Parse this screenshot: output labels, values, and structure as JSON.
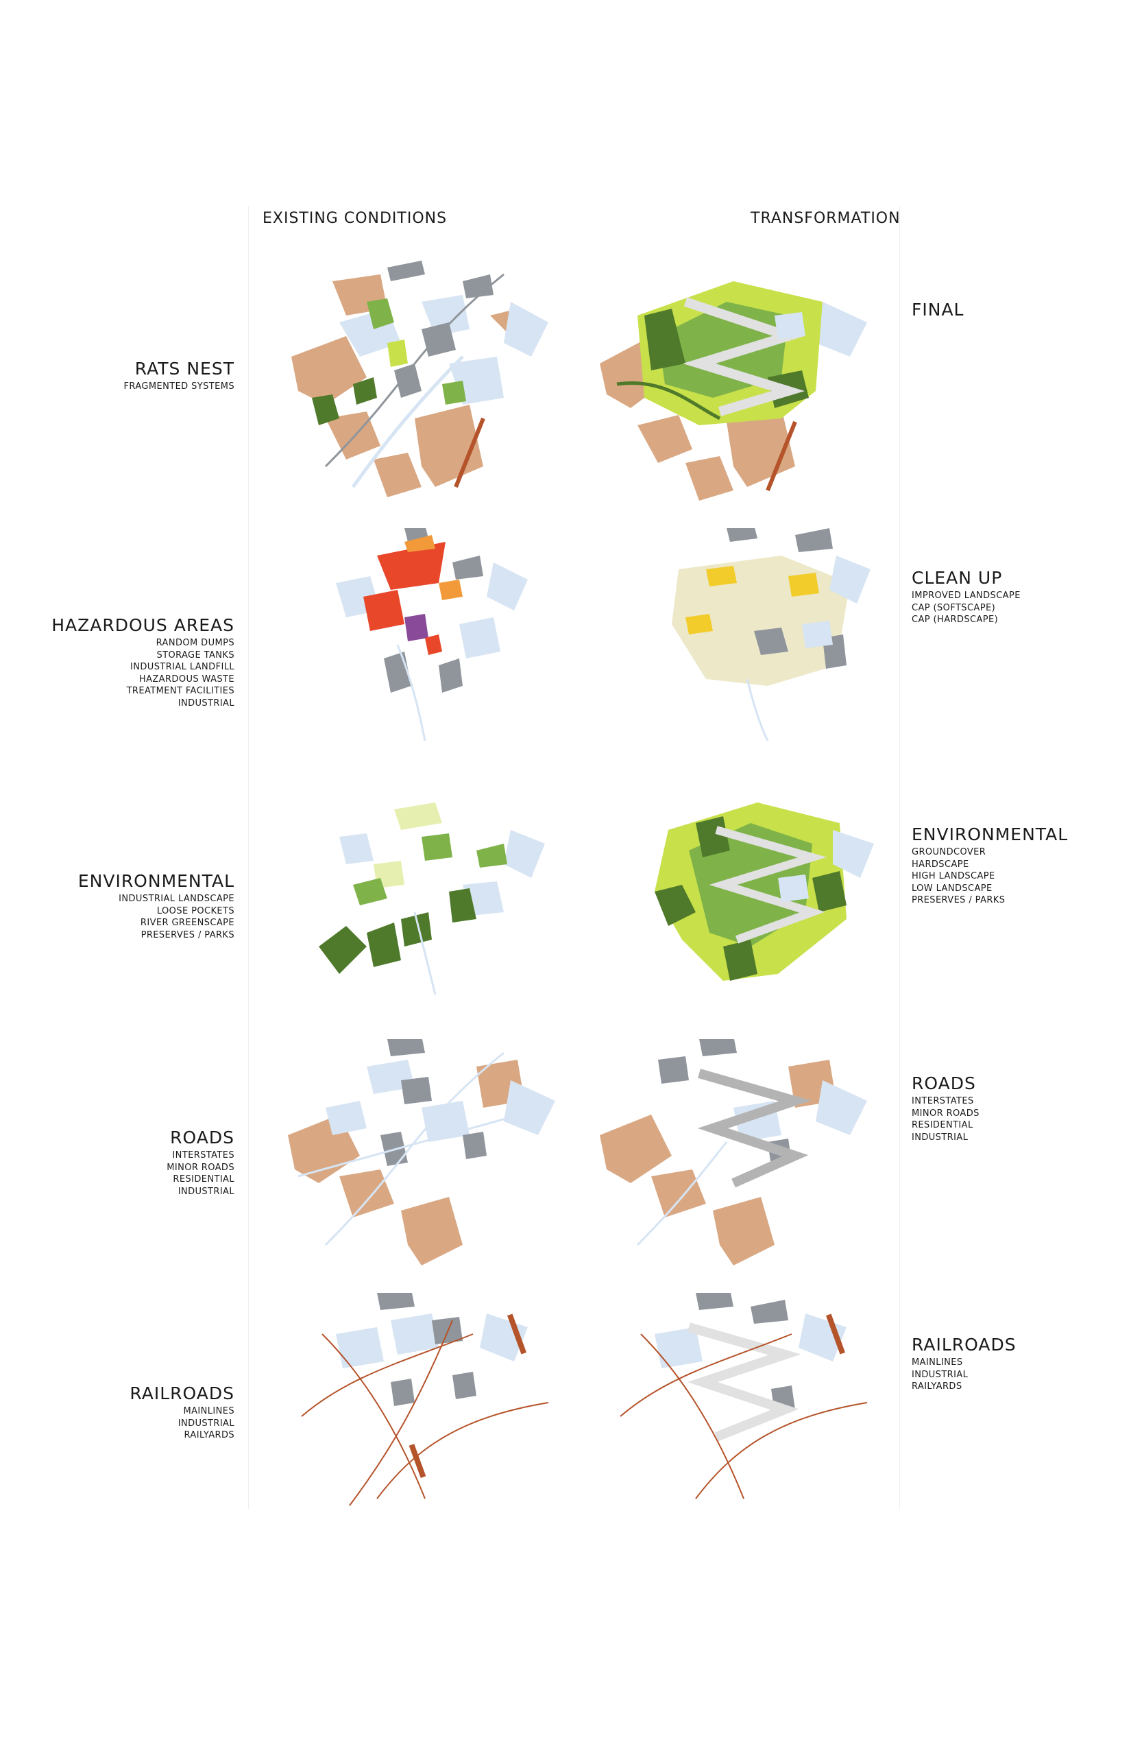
{
  "headers": {
    "existing": "EXISTING CONDITIONS",
    "transformation": "TRANSFORMATION"
  },
  "left_rows": [
    {
      "title": "RATS NEST",
      "items": [
        "FRAGMENTED SYSTEMS"
      ]
    },
    {
      "title": "HAZARDOUS AREAS",
      "items": [
        "RANDOM DUMPS",
        "STORAGE TANKS",
        "INDUSTRIAL LANDFILL",
        "HAZARDOUS WASTE",
        "TREATMENT FACILITIES",
        "INDUSTRIAL"
      ]
    },
    {
      "title": "ENVIRONMENTAL",
      "items": [
        "INDUSTRIAL LANDSCAPE",
        "LOOSE POCKETS",
        "RIVER GREENSCAPE",
        "PRESERVES / PARKS"
      ]
    },
    {
      "title": "ROADS",
      "items": [
        "INTERSTATES",
        "MINOR ROADS",
        "RESIDENTIAL",
        "INDUSTRIAL"
      ]
    },
    {
      "title": "RAILROADS",
      "items": [
        "MAINLINES",
        "INDUSTRIAL",
        "RAILYARDS"
      ]
    }
  ],
  "right_rows": [
    {
      "title": "FINAL",
      "items": []
    },
    {
      "title": "CLEAN UP",
      "items": [
        "IMPROVED LANDSCAPE",
        "CAP (SOFTSCAPE)",
        "CAP (HARDSCAPE)"
      ]
    },
    {
      "title": "ENVIRONMENTAL",
      "items": [
        "GROUNDCOVER",
        "HARDSCAPE",
        "HIGH LANDSCAPE",
        "LOW LANDSCAPE",
        "PRESERVES / PARKS"
      ]
    },
    {
      "title": "ROADS",
      "items": [
        "INTERSTATES",
        "MINOR ROADS",
        "RESIDENTIAL",
        "INDUSTRIAL"
      ]
    },
    {
      "title": "RAILROADS",
      "items": [
        "MAINLINES",
        "INDUSTRIAL",
        "RAILYARDS"
      ]
    }
  ],
  "palette": {
    "residential": "#d9a883",
    "water": "#d6e4f3",
    "industrial": "#8f959b",
    "dark_green": "#4f7a2b",
    "mid_green": "#7fb34a",
    "lime": "#c8e04a",
    "pale_green": "#e6efb0",
    "hazard_red": "#e8472a",
    "hazard_orange": "#f29a3a",
    "hazard_purple": "#8a4a9a",
    "cap_yellow": "#f2cc2a",
    "cap_beige": "#ece8c8",
    "rail": "#b5532a",
    "zigzag": "#e1e1e1"
  }
}
